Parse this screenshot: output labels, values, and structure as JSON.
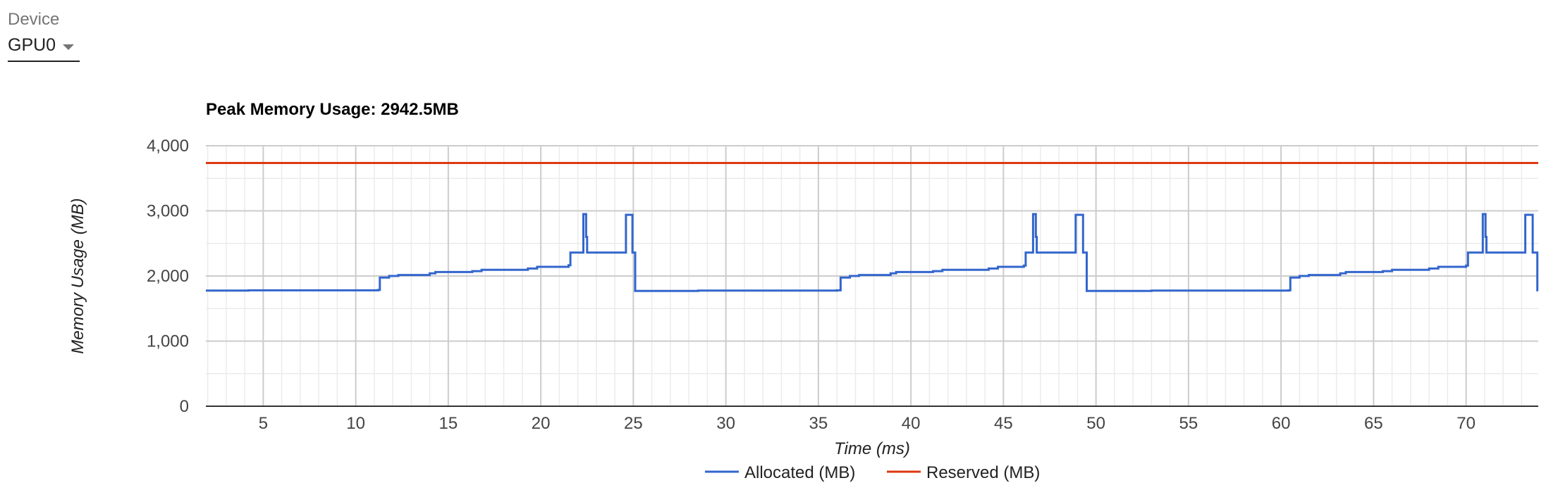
{
  "device": {
    "label": "Device",
    "selected": "GPU0"
  },
  "colors": {
    "allocated": "#3366cc",
    "reserved": "#dc3912",
    "grid_major": "#cccccc",
    "grid_minor": "#ebebeb",
    "axis": "#333333"
  },
  "chart_data": {
    "type": "line",
    "title": "Peak Memory Usage: 2942.5MB",
    "xlabel": "Time (ms)",
    "ylabel": "Memory Usage (MB)",
    "xlim": [
      1.9,
      73.9
    ],
    "ylim": [
      0,
      4000
    ],
    "x_ticks": [
      5,
      10,
      15,
      20,
      25,
      30,
      35,
      40,
      45,
      50,
      55,
      60,
      65,
      70
    ],
    "y_ticks": [
      0,
      1000,
      2000,
      3000,
      4000
    ],
    "y_tick_labels": [
      "0",
      "1,000",
      "2,000",
      "3,000",
      "4,000"
    ],
    "grid": true,
    "legend_position": "bottom",
    "series": [
      {
        "name": "Allocated (MB)",
        "step": true,
        "points": [
          [
            1.9,
            1775
          ],
          [
            4.2,
            1780
          ],
          [
            11.2,
            1785
          ],
          [
            11.3,
            1975
          ],
          [
            11.8,
            2000
          ],
          [
            12.3,
            2015
          ],
          [
            14.0,
            2040
          ],
          [
            14.3,
            2060
          ],
          [
            16.3,
            2075
          ],
          [
            16.8,
            2095
          ],
          [
            19.3,
            2115
          ],
          [
            19.8,
            2140
          ],
          [
            21.5,
            2165
          ],
          [
            21.6,
            2360
          ],
          [
            22.3,
            2360
          ],
          [
            22.3,
            2950
          ],
          [
            22.45,
            2600
          ],
          [
            22.5,
            2360
          ],
          [
            24.6,
            2360
          ],
          [
            24.6,
            2940
          ],
          [
            24.95,
            2940
          ],
          [
            24.95,
            2360
          ],
          [
            25.1,
            2360
          ],
          [
            25.1,
            1770
          ],
          [
            28.5,
            1775
          ],
          [
            36.0,
            1780
          ],
          [
            36.2,
            1975
          ],
          [
            36.7,
            2000
          ],
          [
            37.2,
            2015
          ],
          [
            38.9,
            2040
          ],
          [
            39.2,
            2060
          ],
          [
            41.2,
            2075
          ],
          [
            41.7,
            2095
          ],
          [
            44.2,
            2115
          ],
          [
            44.7,
            2140
          ],
          [
            46.1,
            2160
          ],
          [
            46.2,
            2360
          ],
          [
            46.6,
            2360
          ],
          [
            46.6,
            2950
          ],
          [
            46.75,
            2600
          ],
          [
            46.8,
            2360
          ],
          [
            48.9,
            2360
          ],
          [
            48.9,
            2940
          ],
          [
            49.3,
            2940
          ],
          [
            49.3,
            2360
          ],
          [
            49.5,
            2360
          ],
          [
            49.5,
            1770
          ],
          [
            53.0,
            1775
          ],
          [
            60.4,
            1780
          ],
          [
            60.5,
            1975
          ],
          [
            61.0,
            2000
          ],
          [
            61.5,
            2015
          ],
          [
            63.2,
            2040
          ],
          [
            63.5,
            2060
          ],
          [
            65.5,
            2075
          ],
          [
            66.0,
            2095
          ],
          [
            68.0,
            2115
          ],
          [
            68.5,
            2140
          ],
          [
            70.0,
            2160
          ],
          [
            70.1,
            2360
          ],
          [
            70.9,
            2360
          ],
          [
            70.9,
            2950
          ],
          [
            71.05,
            2600
          ],
          [
            71.1,
            2360
          ],
          [
            73.2,
            2360
          ],
          [
            73.2,
            2940
          ],
          [
            73.6,
            2940
          ],
          [
            73.6,
            2360
          ],
          [
            73.85,
            2360
          ],
          [
            73.85,
            1780
          ],
          [
            73.9,
            1780
          ]
        ]
      },
      {
        "name": "Reserved (MB)",
        "step": true,
        "points": [
          [
            1.9,
            3735
          ],
          [
            73.9,
            3735
          ]
        ]
      }
    ]
  }
}
